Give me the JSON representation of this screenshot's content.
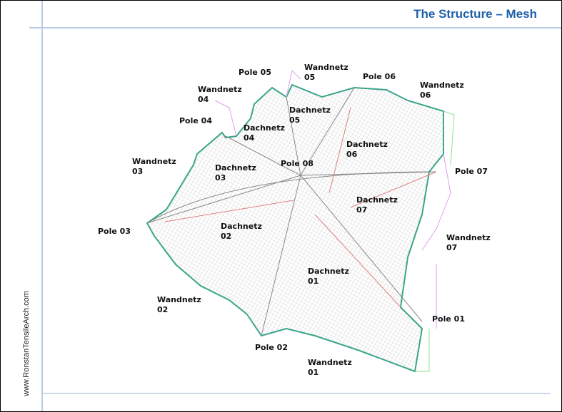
{
  "header": {
    "title": "The Structure – Mesh"
  },
  "footer": {
    "website": "www.RonstanTensileArch.com"
  },
  "labels": [
    [
      "Pole 05"
    ],
    [
      "Wandnetz",
      "05"
    ],
    [
      "Pole 06"
    ],
    [
      "Wandnetz",
      "04"
    ],
    [
      "Wandnetz",
      "06"
    ],
    [
      "Dachnetz",
      "05"
    ],
    [
      "Pole 04"
    ],
    [
      "Dachnetz",
      "04"
    ],
    [
      "Dachnetz",
      "06"
    ],
    [
      "Wandnetz",
      "03"
    ],
    [
      "Dachnetz",
      "03"
    ],
    [
      "Pole 08"
    ],
    [
      "Pole 07"
    ],
    [
      "Dachnetz",
      "07"
    ],
    [
      "Pole 03"
    ],
    [
      "Dachnetz",
      "02"
    ],
    [
      "Wandnetz",
      "07"
    ],
    [
      "Dachnetz",
      "01"
    ],
    [
      "Wandnetz",
      "02"
    ],
    [
      "Pole 01"
    ],
    [
      "Pole 02"
    ],
    [
      "Wandnetz",
      "01"
    ]
  ]
}
